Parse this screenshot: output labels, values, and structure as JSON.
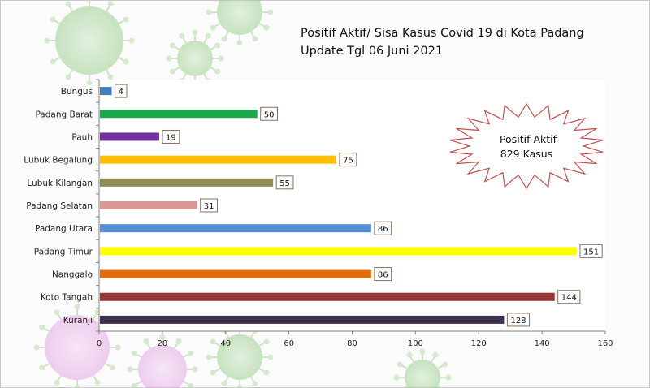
{
  "title_line1": "Positif Aktif/ Sisa Kasus Covid  19 di Kota Padang",
  "title_line2": "Update Tgl 06 Juni 2021",
  "badge": {
    "line1": "Positif Aktif",
    "line2": "829 Kasus"
  },
  "chart_data": {
    "type": "bar",
    "orientation": "horizontal",
    "categories": [
      "Bungus",
      "Padang Barat",
      "Pauh",
      "Lubuk Begalung",
      "Lubuk Kilangan",
      "Padang Selatan",
      "Padang Utara",
      "Padang Timur",
      "Nanggalo",
      "Koto Tangah",
      "Kuranji"
    ],
    "values": [
      4,
      50,
      19,
      75,
      55,
      31,
      86,
      151,
      86,
      144,
      128
    ],
    "colors": [
      "#4a7ebb",
      "#1aa84a",
      "#7030a0",
      "#ffc000",
      "#948a54",
      "#d99694",
      "#558ed5",
      "#ffff00",
      "#e46c0a",
      "#953735",
      "#403151"
    ],
    "xlim": [
      0,
      160
    ],
    "xticks": [
      0,
      20,
      40,
      60,
      80,
      100,
      120,
      140,
      160
    ],
    "data_labels": true,
    "grid": false
  }
}
